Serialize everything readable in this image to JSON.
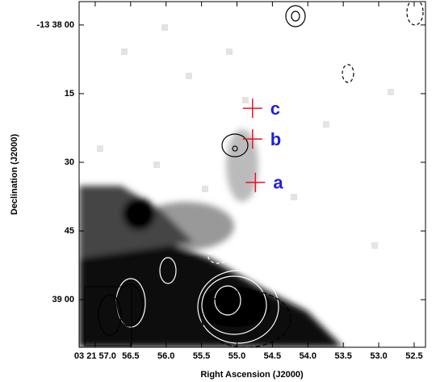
{
  "chart_data": {
    "type": "image",
    "xlabel": "Right Ascension (J2000)",
    "ylabel": "Declination (J2000)",
    "xlim": [
      57.227,
      52.34
    ],
    "ylim": [
      -5.1,
      70.4
    ],
    "xticks": [
      {
        "value": 57.0,
        "label": "03 21 57.0"
      },
      {
        "value": 56.5,
        "label": "56.5"
      },
      {
        "value": 56.0,
        "label": "56.0"
      },
      {
        "value": 55.5,
        "label": "55.5"
      },
      {
        "value": 55.0,
        "label": "55.0"
      },
      {
        "value": 54.5,
        "label": "54.5"
      },
      {
        "value": 54.0,
        "label": "54.0"
      },
      {
        "value": 53.5,
        "label": "53.5"
      },
      {
        "value": 53.0,
        "label": "53.0"
      },
      {
        "value": 52.5,
        "label": "52.5"
      }
    ],
    "yticks": [
      {
        "value": 0,
        "label": "-13 38 00"
      },
      {
        "value": 15,
        "label": "15"
      },
      {
        "value": 30,
        "label": "30"
      },
      {
        "value": 45,
        "label": "45"
      },
      {
        "value": 60,
        "label": "39 00"
      }
    ],
    "marker_color": "#e8102a",
    "label_color": "#1f1fe0",
    "points": [
      {
        "name": "a",
        "ra": 54.74,
        "dec": 34.4
      },
      {
        "name": "b",
        "ra": 54.78,
        "dec": 24.9
      },
      {
        "name": "c",
        "ra": 54.78,
        "dec": 18.2
      }
    ]
  }
}
